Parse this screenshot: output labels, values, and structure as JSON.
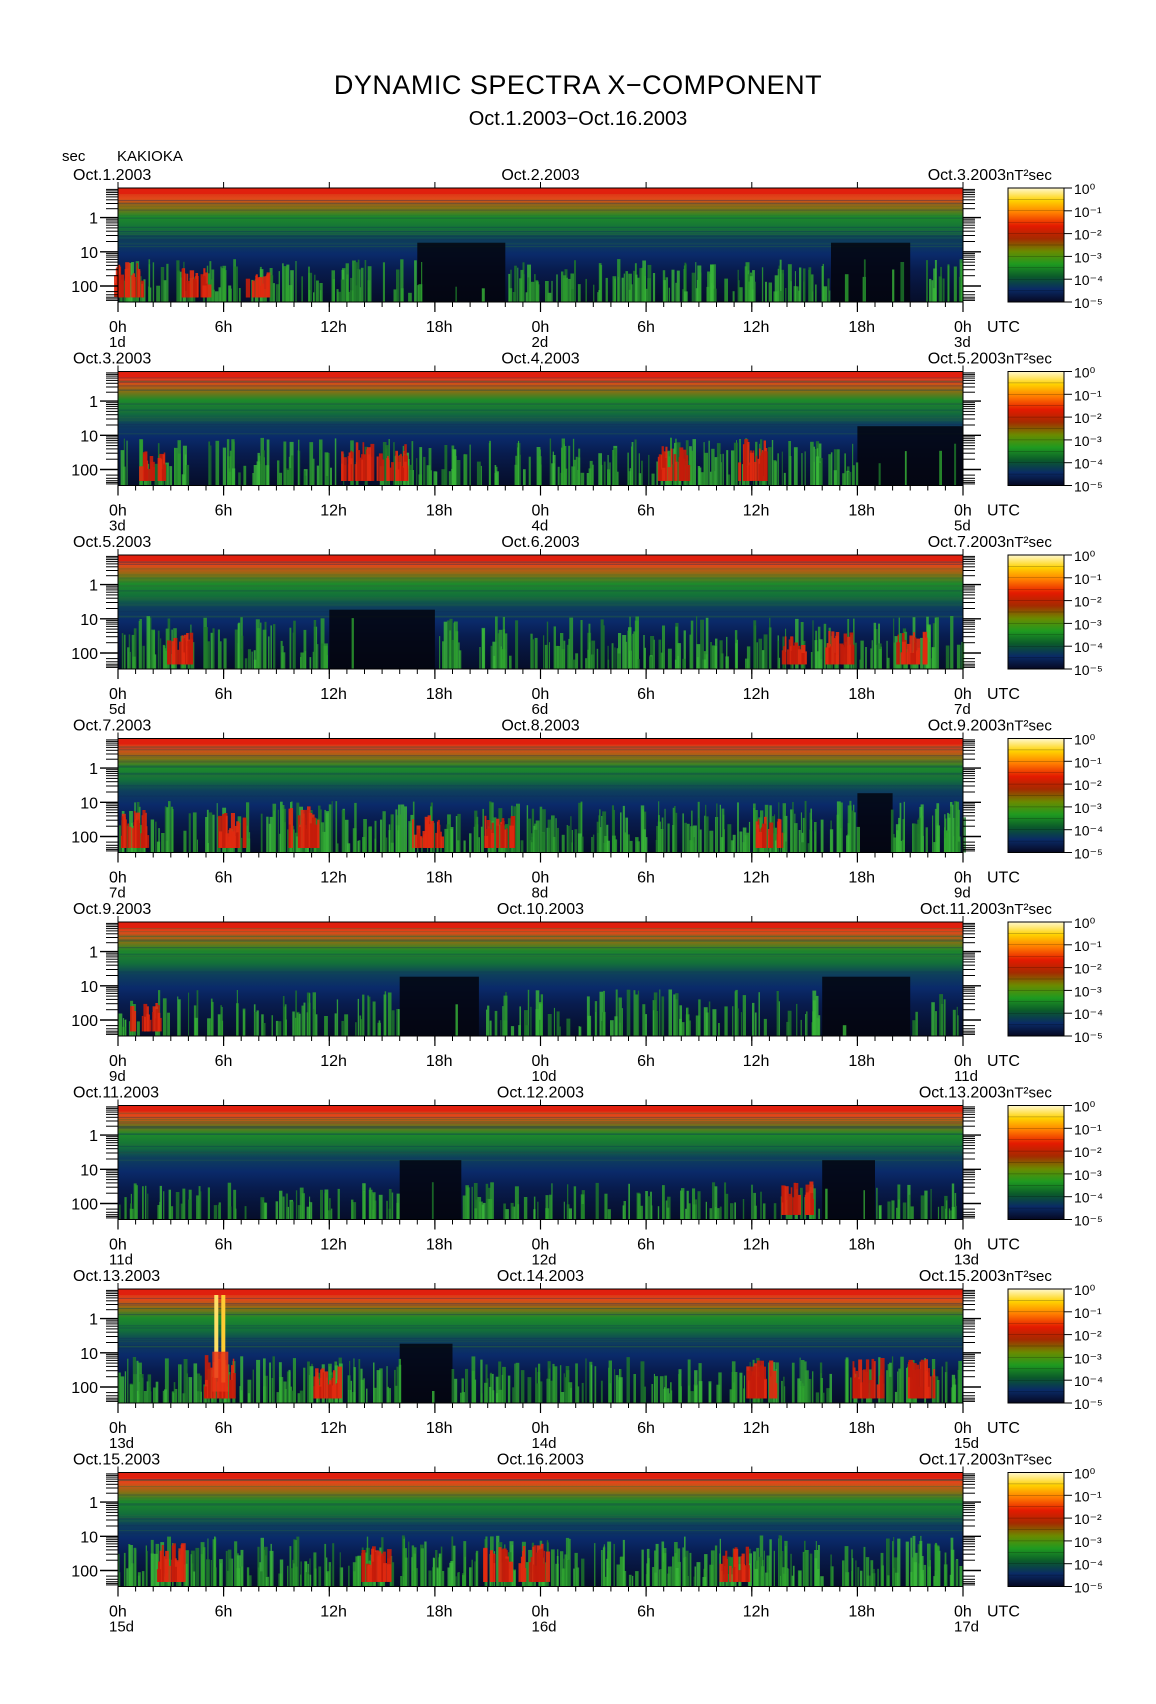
{
  "title": "DYNAMIC SPECTRA X−COMPONENT",
  "subtitle": "Oct.1.2003−Oct.16.2003",
  "ylabel": "sec",
  "station": "KAKIOKA",
  "colorbar_unit": "nT²sec",
  "colorbar_ticks": [
    "10⁰",
    "10⁻¹",
    "10⁻²",
    "10⁻³",
    "10⁻⁴",
    "10⁻⁵"
  ],
  "colorbar_colors": [
    "#fff8d0",
    "#ffd200",
    "#ff7a00",
    "#e41a00",
    "#a52a00",
    "#6b8a00",
    "#1f9a20",
    "#0b5a2a",
    "#0a2a66",
    "#060822"
  ],
  "x_tick_labels": [
    "0h",
    "6h",
    "12h",
    "18h",
    "0h",
    "6h",
    "12h",
    "18h",
    "0h"
  ],
  "time_zone_label": "UTC",
  "y_tick_labels": [
    "1",
    "10",
    "100"
  ],
  "chart_data": [
    {
      "type": "heatmap",
      "left_date": "Oct.1.2003",
      "mid_date": "Oct.2.2003",
      "right_date": "Oct.3.2003",
      "day_labels": [
        "1d",
        "2d",
        "3d"
      ],
      "activity": "moderate",
      "events": [
        {
          "t": 0.5,
          "level": 0.7
        },
        {
          "t": 4.3,
          "level": 0.6
        },
        {
          "t": 8.0,
          "level": 0.4
        }
      ],
      "quiet": [
        [
          17,
          22
        ],
        [
          40.5,
          45
        ]
      ],
      "band_top": 0.55
    },
    {
      "type": "heatmap",
      "left_date": "Oct.3.2003",
      "mid_date": "Oct.4.2003",
      "right_date": "Oct.5.2003",
      "day_labels": [
        "3d",
        "4d",
        "5d"
      ],
      "activity": "moderate",
      "events": [
        {
          "t": 2,
          "level": 0.55
        },
        {
          "t": 13.5,
          "level": 0.8
        },
        {
          "t": 15.5,
          "level": 0.75
        },
        {
          "t": 31.5,
          "level": 0.75
        },
        {
          "t": 36,
          "level": 0.9
        }
      ],
      "quiet": [
        [
          42,
          48
        ]
      ],
      "band_top": 0.62
    },
    {
      "type": "heatmap",
      "left_date": "Oct.5.2003",
      "mid_date": "Oct.6.2003",
      "right_date": "Oct.7.2003",
      "day_labels": [
        "5d",
        "6d",
        "7d"
      ],
      "activity": "moderate",
      "events": [
        {
          "t": 3.5,
          "level": 0.6
        },
        {
          "t": 38.5,
          "level": 0.65
        },
        {
          "t": 41,
          "level": 0.7
        },
        {
          "t": 45,
          "level": 0.65
        }
      ],
      "quiet": [
        [
          12,
          18
        ]
      ],
      "band_top": 0.7
    },
    {
      "type": "heatmap",
      "left_date": "Oct.7.2003",
      "mid_date": "Oct.8.2003",
      "right_date": "Oct.9.2003",
      "day_labels": [
        "7d",
        "8d",
        "9d"
      ],
      "activity": "high",
      "events": [
        {
          "t": 1,
          "level": 0.85
        },
        {
          "t": 6.5,
          "level": 0.7
        },
        {
          "t": 10.5,
          "level": 0.9
        },
        {
          "t": 17.5,
          "level": 0.75
        },
        {
          "t": 21.5,
          "level": 0.7
        },
        {
          "t": 37,
          "level": 0.6
        }
      ],
      "quiet": [
        [
          42,
          44
        ]
      ],
      "band_top": 0.68
    },
    {
      "type": "heatmap",
      "left_date": "Oct.9.2003",
      "mid_date": "Oct.10.2003",
      "right_date": "Oct.11.2003",
      "day_labels": [
        "9d",
        "10d",
        "11d"
      ],
      "activity": "low",
      "events": [
        {
          "t": 1.5,
          "level": 0.55
        }
      ],
      "quiet": [
        [
          16,
          20.5
        ],
        [
          40,
          45
        ]
      ],
      "band_top": 0.6
    },
    {
      "type": "heatmap",
      "left_date": "Oct.11.2003",
      "mid_date": "Oct.12.2003",
      "right_date": "Oct.13.2003",
      "day_labels": [
        "11d",
        "12d",
        "13d"
      ],
      "activity": "low",
      "events": [
        {
          "t": 38.5,
          "level": 0.65
        }
      ],
      "quiet": [
        [
          16,
          19.5
        ],
        [
          40,
          43
        ]
      ],
      "band_top": 0.45
    },
    {
      "type": "heatmap",
      "left_date": "Oct.13.2003",
      "mid_date": "Oct.14.2003",
      "right_date": "Oct.15.2003",
      "day_labels": [
        "13d",
        "14d",
        "15d"
      ],
      "activity": "moderate",
      "events": [
        {
          "t": 5.7,
          "level": 1.0,
          "full": true
        },
        {
          "t": 11.7,
          "level": 0.6
        },
        {
          "t": 36.5,
          "level": 0.8
        },
        {
          "t": 42.5,
          "level": 0.85
        },
        {
          "t": 45.5,
          "level": 0.85
        }
      ],
      "quiet": [
        [
          16,
          19
        ]
      ],
      "band_top": 0.6
    },
    {
      "type": "heatmap",
      "left_date": "Oct.15.2003",
      "mid_date": "Oct.16.2003",
      "right_date": "Oct.17.2003",
      "day_labels": [
        "15d",
        "16d",
        "17d"
      ],
      "activity": "high",
      "events": [
        {
          "t": 3,
          "level": 0.8
        },
        {
          "t": 14.5,
          "level": 0.75
        },
        {
          "t": 21.5,
          "level": 0.75
        },
        {
          "t": 23.5,
          "level": 0.8
        },
        {
          "t": 35,
          "level": 0.7
        }
      ],
      "quiet": [],
      "band_top": 0.68
    }
  ]
}
